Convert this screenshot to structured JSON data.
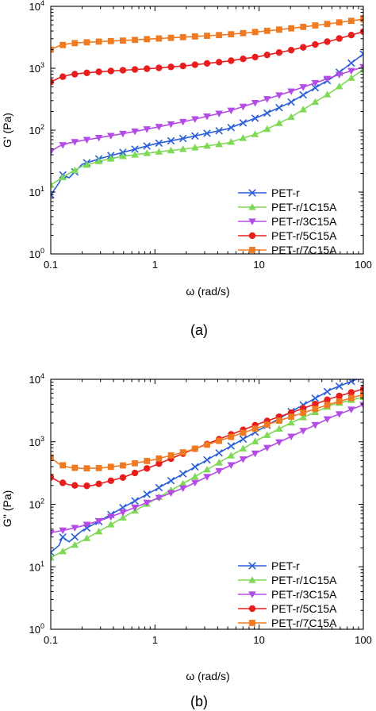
{
  "panels": [
    {
      "label": "(a)"
    },
    {
      "label": "(b)"
    }
  ],
  "series_styles": [
    {
      "name": "PET-r",
      "color": "#2b5fd9",
      "marker": "x"
    },
    {
      "name": "PET-r/1C15A",
      "color": "#7ed957",
      "marker": "triangle-up"
    },
    {
      "name": "PET-r/3C15A",
      "color": "#b44be6",
      "marker": "triangle-down"
    },
    {
      "name": "PET-r/5C15A",
      "color": "#e81e1e",
      "marker": "circle"
    },
    {
      "name": "PET-r/7C15A",
      "color": "#f07a22",
      "marker": "square"
    }
  ],
  "chart_data": [
    {
      "type": "line",
      "xlabel": "ω (rad/s)",
      "ylabel": "G' (Pa)",
      "xscale": "log",
      "yscale": "log",
      "xlim": [
        0.1,
        100
      ],
      "ylim": [
        1,
        10000
      ],
      "x_ticks": [
        "0.1",
        "1",
        "10",
        "100"
      ],
      "y_ticks": [
        "10^0",
        "10^1",
        "10^2",
        "10^3",
        "10^4"
      ],
      "legend_position": "bottom-right",
      "series": [
        {
          "name": "PET-r",
          "x": [
            0.1,
            0.12,
            0.13,
            0.15,
            0.2,
            0.3,
            0.5,
            1,
            2,
            5,
            10,
            20,
            50,
            100
          ],
          "y": [
            9,
            14,
            19,
            17,
            28,
            35,
            44,
            60,
            75,
            105,
            165,
            280,
            700,
            1700
          ]
        },
        {
          "name": "PET-r/1C15A",
          "x": [
            0.1,
            0.15,
            0.2,
            0.3,
            0.5,
            1,
            2,
            5,
            10,
            20,
            50,
            100
          ],
          "y": [
            13,
            20,
            26,
            32,
            38,
            44,
            50,
            62,
            90,
            160,
            420,
            950
          ]
        },
        {
          "name": "PET-r/3C15A",
          "x": [
            0.1,
            0.12,
            0.15,
            0.2,
            0.3,
            0.5,
            1,
            2,
            5,
            10,
            20,
            50,
            100
          ],
          "y": [
            45,
            55,
            62,
            68,
            76,
            88,
            110,
            140,
            200,
            290,
            420,
            720,
            1050
          ]
        },
        {
          "name": "PET-r/5C15A",
          "x": [
            0.1,
            0.12,
            0.15,
            0.2,
            0.3,
            0.5,
            1,
            2,
            5,
            10,
            20,
            50,
            100
          ],
          "y": [
            600,
            700,
            780,
            830,
            880,
            930,
            1000,
            1100,
            1300,
            1550,
            1950,
            2800,
            3900
          ]
        },
        {
          "name": "PET-r/7C15A",
          "x": [
            0.1,
            0.12,
            0.15,
            0.2,
            0.3,
            0.5,
            1,
            2,
            5,
            10,
            20,
            50,
            100
          ],
          "y": [
            2000,
            2300,
            2500,
            2600,
            2700,
            2800,
            3000,
            3200,
            3500,
            3900,
            4400,
            5300,
            6200
          ]
        }
      ]
    },
    {
      "type": "line",
      "xlabel": "ω (rad/s)",
      "ylabel": "G'' (Pa)",
      "xscale": "log",
      "yscale": "log",
      "xlim": [
        0.1,
        100
      ],
      "ylim": [
        1,
        10000
      ],
      "x_ticks": [
        "0.1",
        "1",
        "10",
        "100"
      ],
      "y_ticks": [
        "10^0",
        "10^1",
        "10^2",
        "10^3",
        "10^4"
      ],
      "legend_position": "bottom-right",
      "series": [
        {
          "name": "PET-r",
          "x": [
            0.1,
            0.12,
            0.13,
            0.15,
            0.2,
            0.3,
            0.5,
            1,
            2,
            5,
            10,
            20,
            50,
            100
          ],
          "y": [
            17,
            22,
            30,
            25,
            38,
            55,
            90,
            170,
            330,
            800,
            1550,
            3000,
            7000,
            11000
          ]
        },
        {
          "name": "PET-r/1C15A",
          "x": [
            0.1,
            0.15,
            0.2,
            0.3,
            0.5,
            1,
            2,
            5,
            10,
            20,
            50,
            100
          ],
          "y": [
            14,
            20,
            26,
            38,
            62,
            120,
            230,
            560,
            1100,
            2000,
            3900,
            5200
          ]
        },
        {
          "name": "PET-r/3C15A",
          "x": [
            0.1,
            0.15,
            0.2,
            0.3,
            0.5,
            1,
            2,
            5,
            10,
            20,
            50,
            100
          ],
          "y": [
            35,
            40,
            45,
            55,
            75,
            120,
            190,
            400,
            700,
            1200,
            2500,
            3900
          ]
        },
        {
          "name": "PET-r/5C15A",
          "x": [
            0.1,
            0.12,
            0.15,
            0.2,
            0.25,
            0.3,
            0.5,
            1,
            2,
            5,
            10,
            20,
            50,
            100
          ],
          "y": [
            270,
            230,
            205,
            195,
            200,
            215,
            270,
            420,
            680,
            1250,
            1950,
            2900,
            5000,
            7000
          ]
        },
        {
          "name": "PET-r/7C15A",
          "x": [
            0.1,
            0.12,
            0.15,
            0.2,
            0.3,
            0.5,
            1,
            2,
            5,
            10,
            20,
            50,
            100
          ],
          "y": [
            560,
            440,
            390,
            375,
            380,
            420,
            520,
            700,
            1150,
            1700,
            2500,
            4100,
            5700
          ]
        }
      ]
    }
  ]
}
